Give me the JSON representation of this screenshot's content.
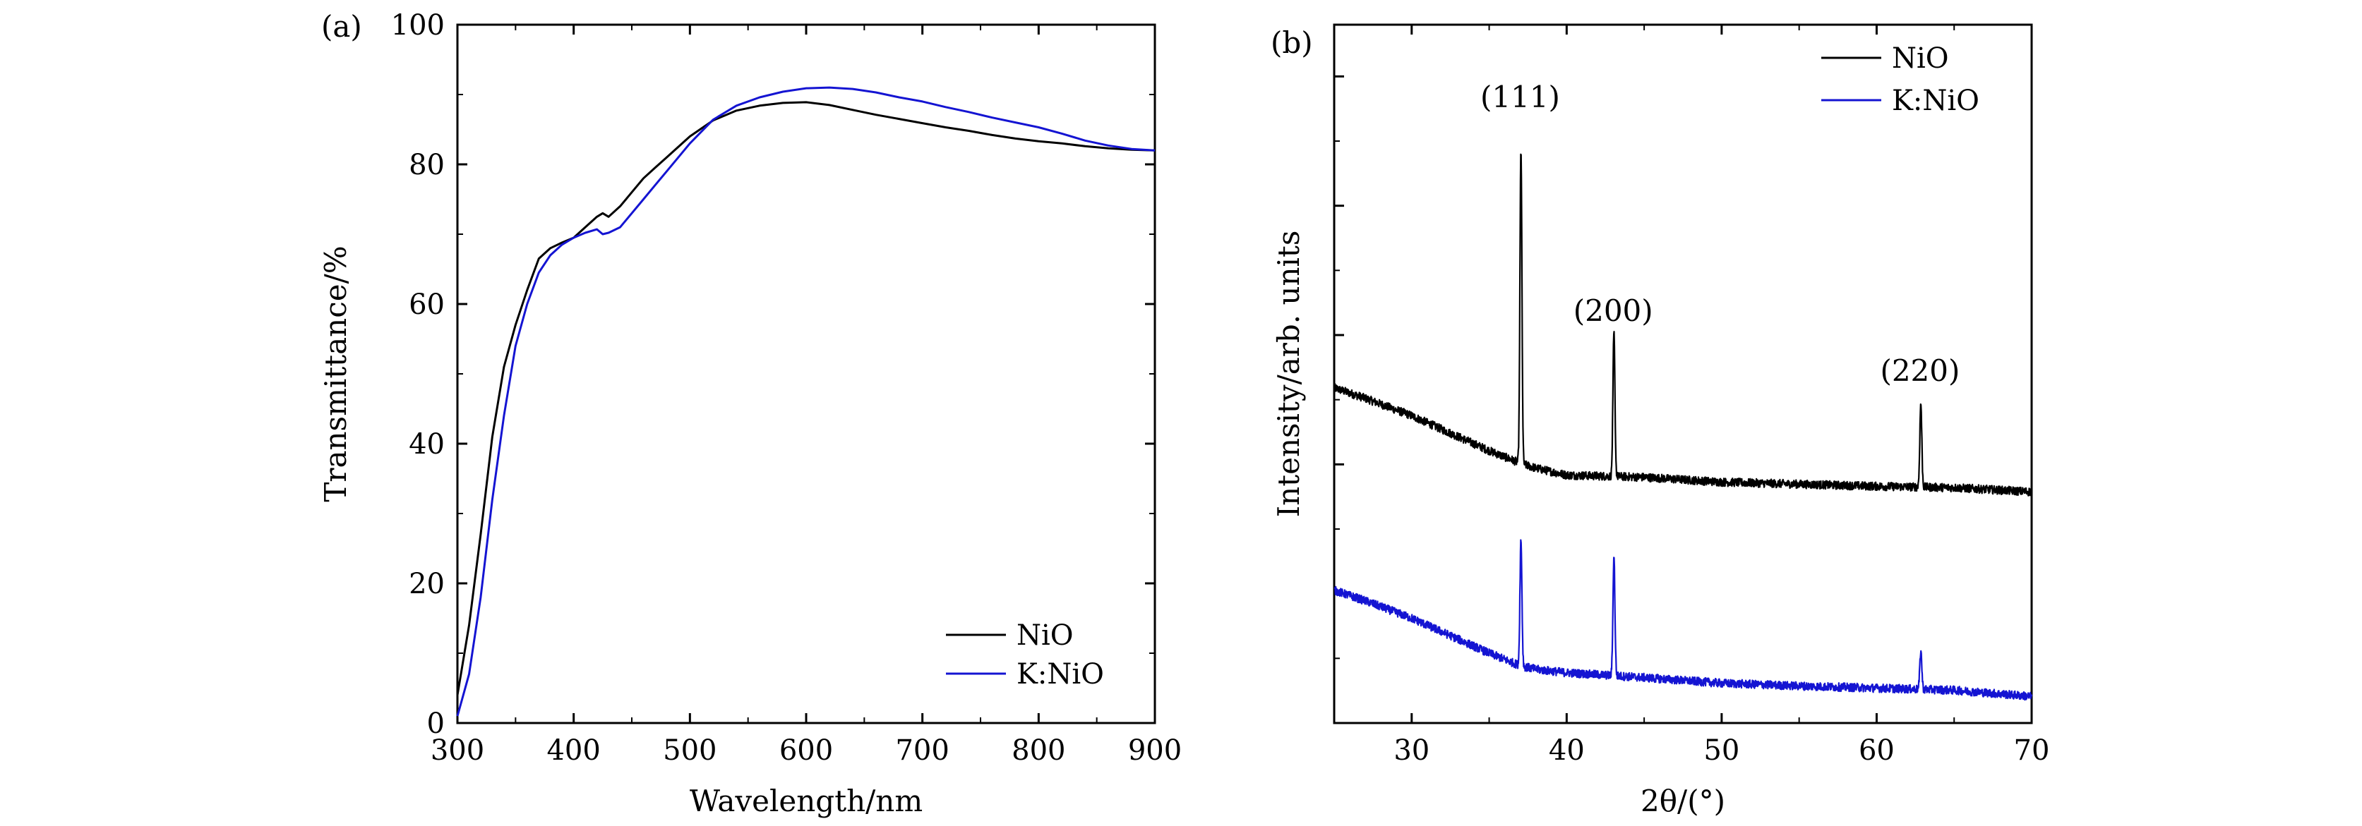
{
  "chart_data": [
    {
      "panel_label": "(a)",
      "type": "line",
      "xlabel": "Wavelength/nm",
      "ylabel": "Transmittance/%",
      "xlim": [
        300,
        900
      ],
      "ylim": [
        0,
        100
      ],
      "xticks": [
        "300",
        "400",
        "500",
        "600",
        "700",
        "800",
        "900"
      ],
      "yticks": [
        "0",
        "20",
        "40",
        "60",
        "80",
        "100"
      ],
      "grid": false,
      "legend_position": "bottom-right",
      "series": [
        {
          "name": "NiO",
          "color": "#000000",
          "x": [
            300,
            310,
            320,
            330,
            340,
            350,
            360,
            370,
            380,
            390,
            400,
            410,
            420,
            425,
            430,
            440,
            450,
            460,
            470,
            480,
            500,
            520,
            540,
            560,
            580,
            600,
            620,
            640,
            660,
            680,
            700,
            720,
            740,
            760,
            780,
            800,
            820,
            840,
            860,
            880,
            900
          ],
          "y": [
            4,
            14,
            27,
            41,
            51,
            57,
            62,
            66.5,
            68,
            68.8,
            69.5,
            71,
            72.5,
            73,
            72.5,
            74,
            76,
            78,
            79.5,
            81,
            84,
            86.3,
            87.7,
            88.4,
            88.8,
            88.9,
            88.5,
            87.8,
            87.1,
            86.5,
            85.9,
            85.3,
            84.8,
            84.2,
            83.7,
            83.3,
            83,
            82.6,
            82.3,
            82.1,
            82
          ]
        },
        {
          "name": "K:NiO",
          "color": "#1414d2",
          "x": [
            300,
            310,
            320,
            330,
            340,
            350,
            360,
            370,
            380,
            390,
            400,
            410,
            420,
            425,
            430,
            440,
            450,
            460,
            470,
            480,
            500,
            520,
            540,
            560,
            580,
            600,
            620,
            640,
            660,
            680,
            700,
            720,
            740,
            760,
            780,
            800,
            820,
            840,
            860,
            880,
            900
          ],
          "y": [
            1,
            7,
            18,
            32,
            44,
            54,
            60,
            64.5,
            67,
            68.5,
            69.5,
            70.2,
            70.7,
            70,
            70.2,
            71,
            73,
            75,
            77,
            79,
            83,
            86.4,
            88.4,
            89.6,
            90.4,
            90.9,
            91,
            90.8,
            90.3,
            89.6,
            89,
            88.2,
            87.5,
            86.7,
            86,
            85.3,
            84.4,
            83.4,
            82.7,
            82.2,
            82
          ]
        }
      ]
    },
    {
      "panel_label": "(b)",
      "type": "line",
      "xlabel": "2θ/(°)",
      "ylabel": "Intensity/arb. units",
      "xlim": [
        25,
        70
      ],
      "xticks": [
        "30",
        "40",
        "50",
        "60",
        "70"
      ],
      "yticks": [],
      "grid": false,
      "legend_position": "top-right",
      "annotations": [
        {
          "text": "(111)",
          "x": 37.0
        },
        {
          "text": "(200)",
          "x": 43.0
        },
        {
          "text": "(220)",
          "x": 62.8
        }
      ],
      "series": [
        {
          "name": "NiO",
          "color": "#000000",
          "baseline": {
            "x": [
              25,
              27,
              30,
              33,
              35,
              37,
              38,
              40,
              45,
              50,
              55,
              60,
              65,
              70
            ],
            "y": [
              0.48,
              0.465,
              0.44,
              0.41,
              0.39,
              0.372,
              0.365,
              0.355,
              0.352,
              0.345,
              0.342,
              0.339,
              0.337,
              0.331
            ]
          },
          "peaks": [
            {
              "x": 37.05,
              "height": 0.45
            },
            {
              "x": 43.05,
              "height": 0.205
            },
            {
              "x": 62.85,
              "height": 0.12
            }
          ]
        },
        {
          "name": "K:NiO",
          "color": "#1414d2",
          "baseline": {
            "x": [
              25,
              27,
              30,
              33,
              35,
              37,
              38,
              40,
              45,
              50,
              55,
              60,
              65,
              70
            ],
            "y": [
              0.19,
              0.175,
              0.15,
              0.12,
              0.1,
              0.082,
              0.077,
              0.072,
              0.065,
              0.057,
              0.053,
              0.05,
              0.047,
              0.038
            ]
          },
          "peaks": [
            {
              "x": 37.05,
              "height": 0.18
            },
            {
              "x": 43.05,
              "height": 0.17
            },
            {
              "x": 62.85,
              "height": 0.055
            }
          ]
        }
      ]
    }
  ]
}
